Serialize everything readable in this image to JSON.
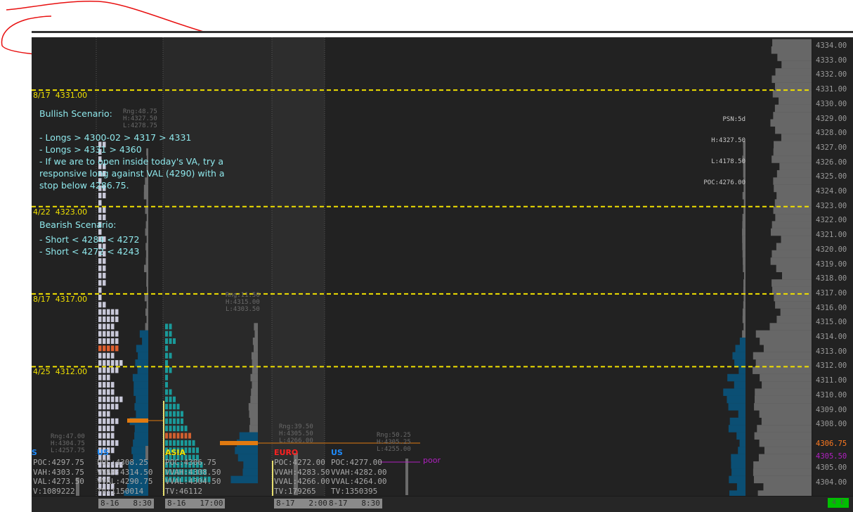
{
  "colors": {
    "background": "#222222",
    "level_line": "#f0e000",
    "scenario_text": "#8fe8ec",
    "profile_blue": "#0b4f74",
    "profile_gray": "#6a6a6a",
    "poc": "#e07a10",
    "poor": "#b020c0",
    "us": "#1e8cff",
    "asia": "#f0e000",
    "euro": "#ff2020",
    "indicator": "#00c000"
  },
  "levels": [
    {
      "label": "8/17  4331.00",
      "price": 4331
    },
    {
      "label": "4/22  4323.00",
      "price": 4323
    },
    {
      "label": "8/17  4317.00",
      "price": 4317
    },
    {
      "label": "4/25  4312.00",
      "price": 4312
    }
  ],
  "scenario": {
    "bullish_title": "Bullish Scenario:",
    "bullish_lines": [
      "- Longs > 4300-02 > 4317 > 4331",
      "- Longs > 4331 > 4360",
      "- If we are to open inside today's VA, try a",
      "responsive long against VAL (4290) with a",
      "stop below 4286.75."
    ],
    "bearish_title": "Bearish Scenario:",
    "bearish_lines": [
      "- Short < 4284 < 4272",
      "- Short < 4272 < 4243"
    ]
  },
  "ranges": [
    {
      "rng": "Rng:48.75",
      "h": "H:4327.50",
      "l": "L:4278.75"
    },
    {
      "rng": "Rng:11.50",
      "h": "H:4315.00",
      "l": "L:4303.50"
    },
    {
      "rng": "Rng:47.00",
      "h": "H:4304.75",
      "l": "L:4257.75"
    },
    {
      "rng": "Rng:39.50",
      "h": "H:4305.50",
      "l": "L:4266.00"
    },
    {
      "rng": "Rng:50.25",
      "h": "H:4305.25",
      "l": "L:4255.00"
    }
  ],
  "composite": {
    "psn": "PSN:5d",
    "h": "H:4327.50",
    "l": "L:4178.50",
    "poc": "POC:4276.00"
  },
  "sessions": [
    {
      "name": "US",
      "poc": "POC:4297.75",
      "vah": "VAH:4303.75",
      "val": "VAL:4273.50",
      "tv": "V:1089222"
    },
    {
      "name": "US",
      "poc": "POC:4308.25",
      "vah": "VVAH:4314.50",
      "val": "VVAL:4290.75",
      "tv": "TV:1150014"
    },
    {
      "name": "ASIA",
      "poc": "POC:4306.75",
      "vah": "VVAH:4308.50",
      "val": "VVAL:4304.50",
      "tv": "TV:46112"
    },
    {
      "name": "EURO",
      "poc": "POC:4272.00",
      "vah": "VVAH:4283.50",
      "val": "VVAL:4266.00",
      "tv": "TV:179265"
    },
    {
      "name": "US",
      "poc": "POC:4277.00",
      "vah": "VVAH:4282.00",
      "val": "VVAL:4264.00",
      "tv": "TV:1350395"
    }
  ],
  "poor_label": "poor",
  "axis": {
    "ticks": [
      "4334.00",
      "4333.00",
      "4332.00",
      "4331.00",
      "4330.00",
      "4329.00",
      "4328.00",
      "4327.00",
      "4326.00",
      "4325.00",
      "4324.00",
      "4323.00",
      "4322.00",
      "4321.00",
      "4320.00",
      "4319.00",
      "4318.00",
      "4317.00",
      "4316.00",
      "4315.00",
      "4314.00",
      "4313.00",
      "4312.00",
      "4311.00",
      "4310.00",
      "4309.00",
      "4308.00",
      "4305.00",
      "4304.00"
    ],
    "last_price": "4306.75",
    "poor_price": "4305.50"
  },
  "time_labels": [
    "8-16   8:30",
    "8-16   17:00",
    "8-17   2:00",
    "8-17   8:30"
  ],
  "status_indicator": "4 E"
}
